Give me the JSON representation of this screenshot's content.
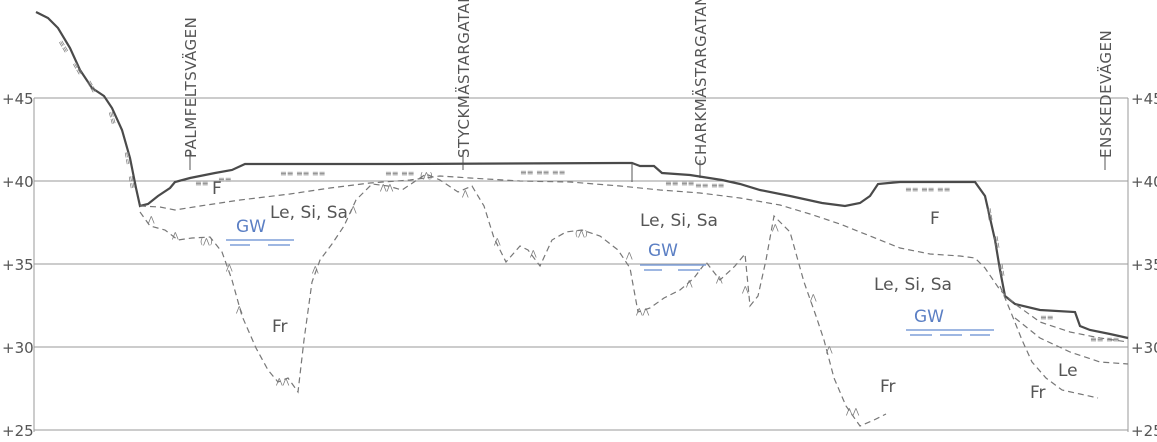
{
  "elevation_labels": [
    "+45",
    "+40",
    "+35",
    "+30",
    "+25"
  ],
  "streets": [
    "PALMFELTSVÄGEN",
    "STYCKMÄSTARGATAN",
    "CHARKMÄSTARGATAN",
    "ENSKEDEVÄGEN"
  ],
  "soil_labels": {
    "le_si_sa": "Le, Si, Sa",
    "gw": "GW",
    "fr": "Fr",
    "f": "F",
    "le": "Le"
  },
  "colors": {
    "groundwater": "#7f9fd8",
    "ground_surface": "#4a4a4a",
    "layer_boundary": "#777777",
    "grid": "#9a9a9a"
  }
}
